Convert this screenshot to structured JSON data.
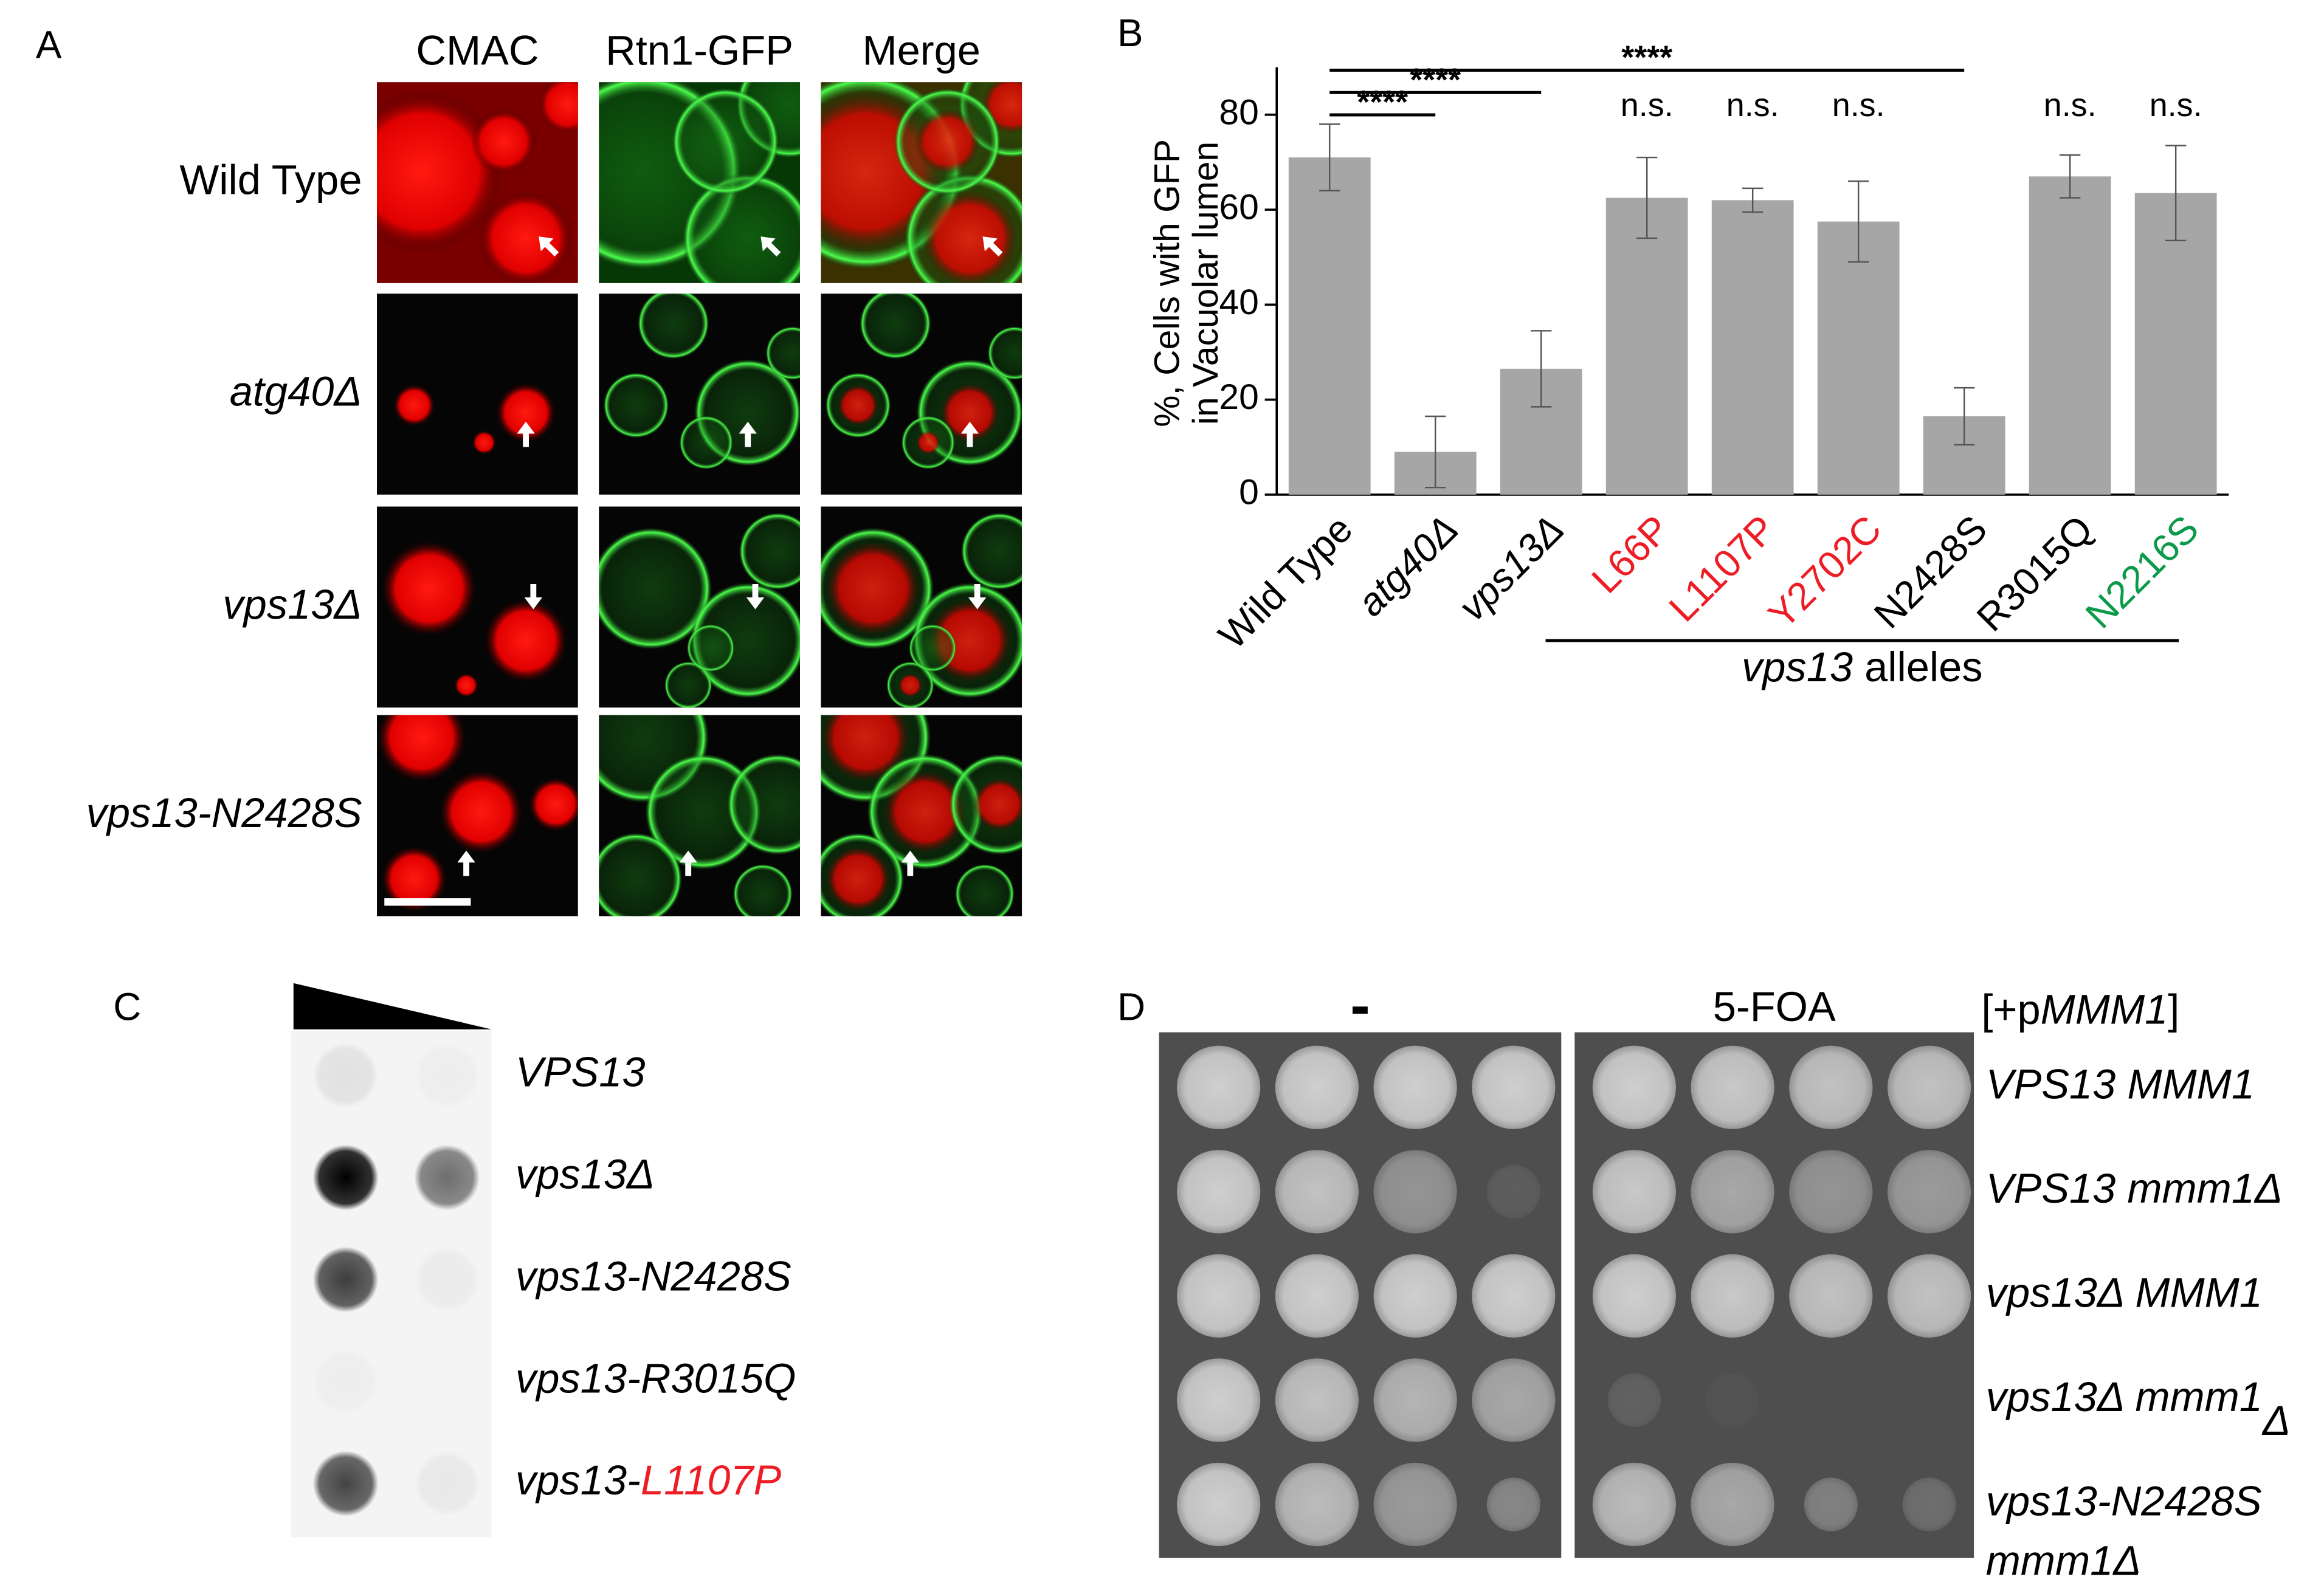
{
  "chart_data": {
    "type": "bar",
    "panel": "B",
    "ylabel": [
      "%, Cells with GFP",
      "in Vacuolar lumen"
    ],
    "categories": [
      "Wild Type",
      "atg40Δ",
      "vps13Δ",
      "L66P",
      "L1107P",
      "Y2702C",
      "N2428S",
      "R3015Q",
      "N2216S"
    ],
    "category_colors": [
      "#000000",
      "#000000",
      "#000000",
      "#ee1c24",
      "#ee1c24",
      "#ee1c24",
      "#000000",
      "#000000",
      "#0a9a4a"
    ],
    "category_italic": [
      false,
      true,
      true,
      false,
      false,
      false,
      false,
      false,
      false
    ],
    "values": [
      71,
      9,
      26.5,
      62.5,
      62,
      57.5,
      16.5,
      67,
      63.5
    ],
    "errors": [
      7,
      7.5,
      8,
      8.5,
      2.5,
      8.5,
      6,
      4.5,
      10
    ],
    "color": "#a6a6a6",
    "ylim": [
      0,
      90
    ],
    "yticks": [
      0,
      20,
      40,
      60,
      80
    ],
    "notes": [
      null,
      null,
      null,
      "n.s.",
      "n.s.",
      "n.s.",
      null,
      "n.s.",
      "n.s."
    ],
    "comparisons": [
      {
        "label": "****",
        "pair": [
          "Wild Type",
          "atg40Δ"
        ]
      },
      {
        "label": "****",
        "pair": [
          "Wild Type",
          "vps13Δ"
        ]
      },
      {
        "label": "****",
        "pair": [
          "Wild Type",
          "N2428S"
        ]
      }
    ],
    "group": {
      "label": [
        {
          "text": "vps13",
          "italic": true
        },
        {
          "text": " alleles"
        }
      ],
      "from": "L66P",
      "to": "N2216S"
    }
  },
  "panel_a": {
    "label": "A",
    "columns": [
      "CMAC",
      "Rtn1-GFP",
      "Merge"
    ],
    "rows": [
      [
        {
          "text": "Wild Type"
        }
      ],
      [
        {
          "text": "atg40Δ",
          "italic": true
        }
      ],
      [
        {
          "text": "vps13Δ",
          "italic": true
        }
      ],
      [
        {
          "text": "vps13-N2428S",
          "italic": true
        }
      ]
    ]
  },
  "panel_c": {
    "label": "C",
    "rows": [
      [
        {
          "text": "VPS13",
          "italic": true
        }
      ],
      [
        {
          "text": "vps13Δ",
          "italic": true
        }
      ],
      [
        {
          "text": "vps13-N2428S",
          "italic": true
        }
      ],
      [
        {
          "text": "vps13-R3015Q",
          "italic": true
        }
      ],
      [
        {
          "text": "vps13-",
          "italic": true
        },
        {
          "text": "L1107P",
          "italic": true,
          "color": "#ee1c24"
        }
      ]
    ]
  },
  "panel_d": {
    "label": "D",
    "columns": [
      "-",
      "5-FOA"
    ],
    "marker": [
      {
        "text": "[+p"
      },
      {
        "text": "MMM1",
        "italic": true
      },
      {
        "text": "]"
      }
    ],
    "rows": [
      [
        [
          {
            "text": "VPS13 MMM1",
            "italic": true
          }
        ]
      ],
      [
        [
          {
            "text": "VPS13 mmm1Δ",
            "italic": true
          }
        ]
      ],
      [
        [
          {
            "text": "vps13Δ MMM1",
            "italic": true
          }
        ]
      ],
      [
        [
          {
            "text": "vps13Δ mmm1",
            "italic": true
          },
          {
            "text": "Δ",
            "italic": true,
            "sub": true
          }
        ]
      ],
      [
        [
          {
            "text": "vps13-N2428S",
            "italic": true
          }
        ],
        [
          {
            "text": "mmm1Δ",
            "italic": true
          }
        ]
      ]
    ]
  }
}
